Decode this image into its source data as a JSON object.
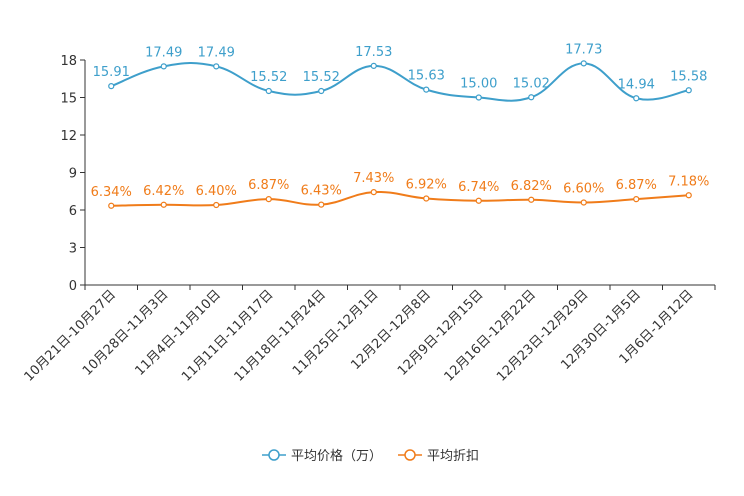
{
  "chart_data": {
    "type": "line",
    "title": "",
    "xlabel": "",
    "ylabel": "",
    "ylim": [
      0,
      18
    ],
    "yticks": [
      0,
      3,
      6,
      9,
      12,
      15,
      18
    ],
    "categories": [
      "10月21日-10月27日",
      "10月28日-11月3日",
      "11月4日-11月10日",
      "11月11日-11月17日",
      "11月18日-11月24日",
      "11月25日-12月1日",
      "12月2日-12月8日",
      "12月9日-12月15日",
      "12月16日-12月22日",
      "12月23日-12月29日",
      "12月30日-1月5日",
      "1月6日-1月12日"
    ],
    "series": [
      {
        "name": "平均价格（万）",
        "color": "#3e9fcb",
        "values": [
          15.91,
          17.49,
          17.49,
          15.52,
          15.52,
          17.53,
          15.63,
          15.0,
          15.02,
          17.73,
          14.94,
          15.58
        ],
        "labels": [
          "15.91",
          "17.49",
          "17.49",
          "15.52",
          "15.52",
          "17.53",
          "15.63",
          "15.00",
          "15.02",
          "17.73",
          "14.94",
          "15.58"
        ]
      },
      {
        "name": "平均折扣",
        "color": "#f07c1a",
        "values": [
          6.34,
          6.42,
          6.4,
          6.87,
          6.43,
          7.43,
          6.92,
          6.74,
          6.82,
          6.6,
          6.87,
          7.18
        ],
        "labels": [
          "6.34%",
          "6.42%",
          "6.40%",
          "6.87%",
          "6.43%",
          "7.43%",
          "6.92%",
          "6.74%",
          "6.82%",
          "6.60%",
          "6.87%",
          "7.18%"
        ]
      }
    ],
    "legend_position": "bottom-center"
  }
}
